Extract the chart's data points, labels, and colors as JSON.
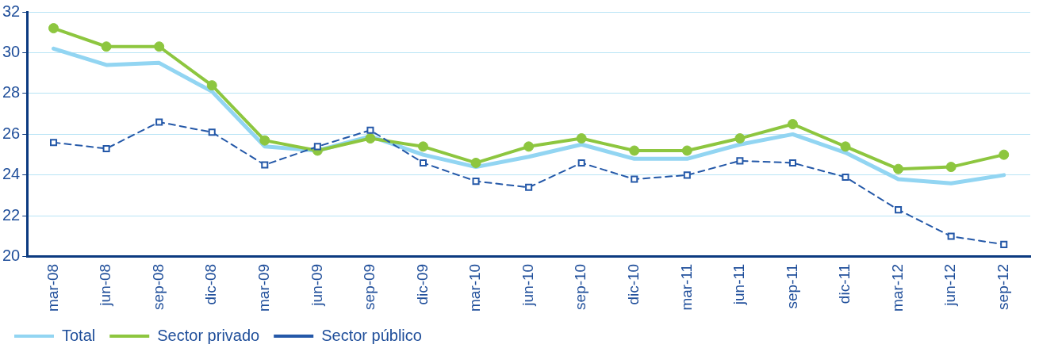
{
  "chart_data": {
    "type": "line",
    "categories": [
      "mar-08",
      "jun-08",
      "sep-08",
      "dic-08",
      "mar-09",
      "jun-09",
      "sep-09",
      "dic-09",
      "mar-10",
      "jun-10",
      "sep-10",
      "dic-10",
      "mar-11",
      "jun-11",
      "sep-11",
      "dic-11",
      "mar-12",
      "jun-12",
      "sep-12"
    ],
    "series": [
      {
        "name": "Total",
        "color": "#92d5f2",
        "marker": "none",
        "line_style": "solid",
        "values": [
          30.2,
          29.4,
          29.5,
          28.1,
          25.4,
          25.2,
          25.9,
          25.0,
          24.4,
          24.9,
          25.5,
          24.8,
          24.8,
          25.5,
          26.0,
          25.1,
          23.8,
          23.6,
          24.0
        ]
      },
      {
        "name": "Sector privado",
        "color": "#8dc63f",
        "marker": "circle",
        "line_style": "solid",
        "values": [
          31.2,
          30.3,
          30.3,
          28.4,
          25.7,
          25.2,
          25.8,
          25.4,
          24.6,
          25.4,
          25.8,
          25.2,
          25.2,
          25.8,
          26.5,
          25.4,
          24.3,
          24.4,
          25.0
        ]
      },
      {
        "name": "Sector público",
        "color": "#2458a8",
        "marker": "square",
        "line_style": "dashed",
        "values": [
          25.6,
          25.3,
          26.6,
          26.1,
          24.5,
          25.4,
          26.2,
          24.6,
          23.7,
          23.4,
          24.6,
          23.8,
          24.0,
          24.7,
          24.6,
          23.9,
          22.3,
          21.0,
          20.6
        ]
      }
    ],
    "ylim": [
      20,
      32
    ],
    "yticks": [
      20,
      22,
      24,
      26,
      28,
      30,
      32
    ],
    "grid": "y",
    "legend": "bottom left"
  }
}
